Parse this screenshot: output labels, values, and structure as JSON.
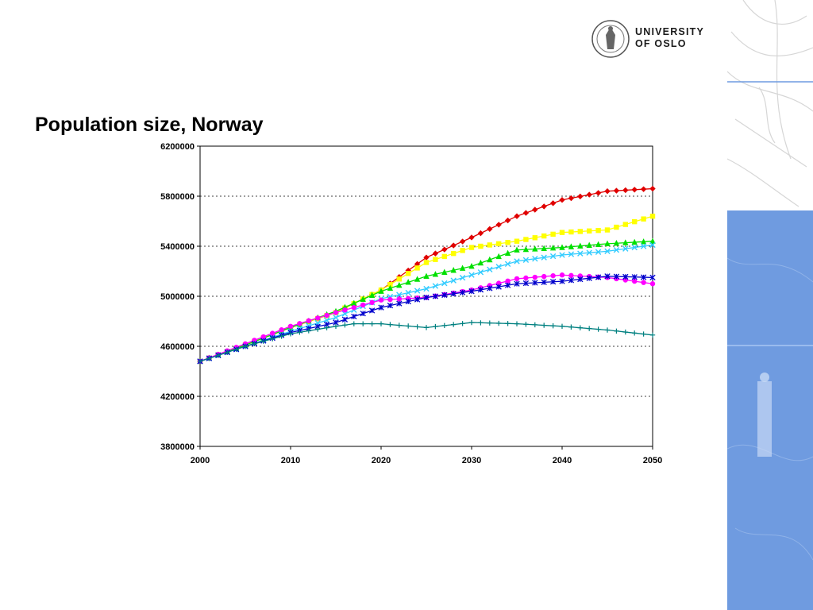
{
  "logo": {
    "line1": "UNIVERSITY",
    "line2": "OF OSLO"
  },
  "title": "Population size, Norway",
  "colors": {
    "panel_blue": "#6f9be0"
  },
  "chart_data": {
    "type": "line",
    "xlim": [
      2000,
      2050
    ],
    "ylim": [
      3800000,
      6200000
    ],
    "xticks": [
      2000,
      2010,
      2020,
      2030,
      2040,
      2050
    ],
    "yticks": [
      3800000,
      4200000,
      4600000,
      5000000,
      5400000,
      5800000,
      6200000
    ],
    "grid": "horizontal dotted",
    "series": [
      {
        "color": "#e00000",
        "marker": "diamond",
        "x": [
          2000,
          2005,
          2010,
          2015,
          2020,
          2025,
          2030,
          2035,
          2040,
          2045,
          2050
        ],
        "y": [
          4480000,
          4610000,
          4750000,
          4870000,
          5050000,
          5310000,
          5470000,
          5640000,
          5770000,
          5840000,
          5860000
        ]
      },
      {
        "color": "#ffff00",
        "marker": "square",
        "x": [
          2000,
          2005,
          2010,
          2015,
          2020,
          2025,
          2030,
          2035,
          2040,
          2045,
          2050
        ],
        "y": [
          4480000,
          4610000,
          4750000,
          4870000,
          5050000,
          5270000,
          5390000,
          5440000,
          5510000,
          5530000,
          5640000
        ]
      },
      {
        "color": "#00e000",
        "marker": "triangle",
        "x": [
          2000,
          2005,
          2010,
          2015,
          2020,
          2025,
          2030,
          2035,
          2040,
          2045,
          2050
        ],
        "y": [
          4480000,
          4610000,
          4750000,
          4880000,
          5040000,
          5160000,
          5240000,
          5370000,
          5390000,
          5420000,
          5440000
        ]
      },
      {
        "color": "#33ccff",
        "marker": "x",
        "x": [
          2000,
          2005,
          2010,
          2015,
          2020,
          2025,
          2030,
          2035,
          2040,
          2045,
          2050
        ],
        "y": [
          4480000,
          4600000,
          4720000,
          4830000,
          4980000,
          5060000,
          5170000,
          5280000,
          5330000,
          5360000,
          5410000
        ]
      },
      {
        "color": "#ff00ff",
        "marker": "circle",
        "x": [
          2000,
          2005,
          2010,
          2015,
          2020,
          2025,
          2030,
          2035,
          2040,
          2045,
          2050
        ],
        "y": [
          4480000,
          4620000,
          4760000,
          4870000,
          4970000,
          4990000,
          5050000,
          5140000,
          5170000,
          5150000,
          5100000
        ]
      },
      {
        "color": "#0000cc",
        "marker": "star",
        "x": [
          2000,
          2005,
          2010,
          2015,
          2020,
          2025,
          2030,
          2035,
          2040,
          2045,
          2050
        ],
        "y": [
          4480000,
          4600000,
          4710000,
          4790000,
          4910000,
          4990000,
          5040000,
          5100000,
          5120000,
          5160000,
          5150000
        ]
      },
      {
        "color": "#008080",
        "marker": "plus",
        "x": [
          2000,
          2005,
          2010,
          2015,
          2017,
          2020,
          2025,
          2030,
          2035,
          2040,
          2045,
          2050
        ],
        "y": [
          4480000,
          4600000,
          4700000,
          4760000,
          4780000,
          4780000,
          4750000,
          4790000,
          4780000,
          4760000,
          4730000,
          4690000
        ]
      }
    ]
  }
}
